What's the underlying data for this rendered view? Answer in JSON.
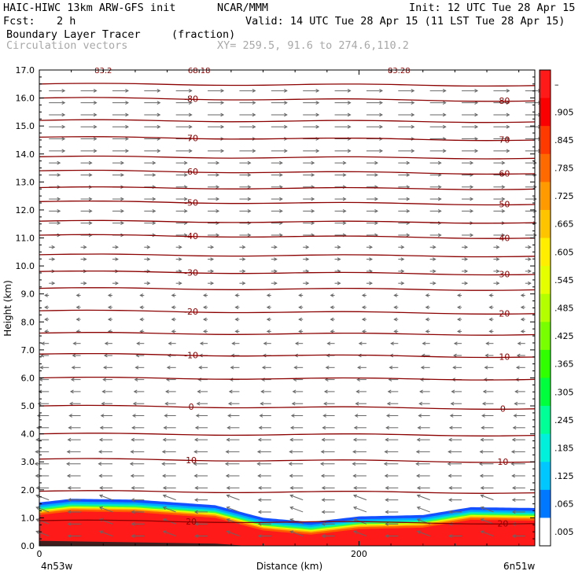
{
  "header": {
    "model": "HAIC-HIWC 13km ARW-GFS init",
    "org": "NCAR/MMM",
    "init": "Init: 12 UTC Tue 28 Apr 15",
    "fcst_label": "Fcst:",
    "fcst_value": "2 h",
    "valid": "Valid: 14 UTC Tue 28 Apr 15 (11 LST Tue 28 Apr 15)",
    "field": "Boundary Layer Tracer",
    "field_units": "(fraction)",
    "vectors": "Circulation vectors",
    "xy": "XY= 259.5, 91.6 to 274.6,110.2"
  },
  "chart_data": {
    "type": "heatmap",
    "title": "Boundary Layer Tracer",
    "units": "fraction",
    "xlabel": "Distance (km)",
    "ylabel": "Height (km)",
    "x_range": [
      0,
      310
    ],
    "ylim": [
      0.0,
      17.0
    ],
    "x_ticks": [
      0,
      200
    ],
    "x_end_labels": [
      "4n53w",
      "6n51w"
    ],
    "y_ticks": [
      "0.0",
      "1.0",
      "2.0",
      "3.0",
      "4.0",
      "5.0",
      "6.0",
      "7.0",
      "8.0",
      "9.0",
      "10.0",
      "11.0",
      "12.0",
      "13.0",
      "14.0",
      "15.0",
      "16.0",
      "17.0"
    ],
    "colorbar": {
      "labels": [
        "–",
        ".905",
        ".845",
        ".785",
        ".725",
        ".665",
        ".605",
        ".545",
        ".485",
        ".425",
        ".365",
        ".305",
        ".245",
        ".185",
        ".125",
        ".065",
        ".005"
      ],
      "colors": [
        "#ff1a1a",
        "#fa0000",
        "#ff3a00",
        "#ff6a00",
        "#ff9a00",
        "#ffc400",
        "#ffee00",
        "#e6ff00",
        "#b4ff00",
        "#78ff00",
        "#30ff00",
        "#00ff3c",
        "#00ff96",
        "#00f0dc",
        "#00c8ff",
        "#0078ff",
        "#ffffff"
      ]
    },
    "tracer_top_km": {
      "x": [
        0,
        20,
        60,
        110,
        140,
        170,
        200,
        240,
        270,
        310
      ],
      "top": [
        1.55,
        1.68,
        1.65,
        1.45,
        1.0,
        0.85,
        1.05,
        1.1,
        1.38,
        1.35
      ]
    },
    "isotherms_c": [
      {
        "label": "20",
        "y_km": 0.9
      },
      {
        "label": "10",
        "y_km": 3.1
      },
      {
        "label": "0",
        "y_km": 5.0
      },
      {
        "label": "-10",
        "y_km": 6.85
      },
      {
        "label": "-20",
        "y_km": 8.4
      },
      {
        "label": "-30",
        "y_km": 9.8
      },
      {
        "label": "-40",
        "y_km": 11.1
      },
      {
        "label": "-50",
        "y_km": 12.3
      },
      {
        "label": "-60",
        "y_km": 13.4
      },
      {
        "label": "-70",
        "y_km": 14.6
      },
      {
        "label": "-80",
        "y_km": 16.0
      }
    ],
    "extra_isotherms_km": [
      1.95,
      4.0,
      6.0,
      7.6,
      9.2,
      10.4,
      11.6,
      12.8,
      13.9,
      15.2,
      16.5
    ],
    "top_labels": [
      "83.2",
      "68.18",
      "83.28"
    ],
    "vectors_note": "Circulation vectors"
  }
}
